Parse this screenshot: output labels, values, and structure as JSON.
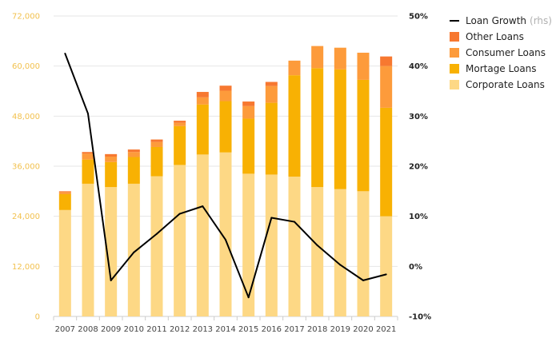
{
  "chart_data": {
    "type": "bar",
    "stacked": true,
    "categories": [
      "2007",
      "2008",
      "2009",
      "2010",
      "2011",
      "2012",
      "2013",
      "2014",
      "2015",
      "2016",
      "2017",
      "2018",
      "2019",
      "2020",
      "2021"
    ],
    "series": [
      {
        "name": "Corporate Loans",
        "color": "#fdd885",
        "values": [
          25500,
          31800,
          31000,
          31800,
          33600,
          36300,
          38800,
          39300,
          34200,
          34000,
          33500,
          31000,
          30500,
          30000,
          24000
        ]
      },
      {
        "name": "Mortage Loans",
        "color": "#f8b103",
        "values": [
          3800,
          5800,
          6000,
          6400,
          7000,
          9300,
          12000,
          12300,
          13200,
          17200,
          24300,
          28500,
          28700,
          26700,
          26000
        ]
      },
      {
        "name": "Consumer Loans",
        "color": "#fd9b3b",
        "values": [
          500,
          1400,
          1300,
          1200,
          1200,
          800,
          1700,
          2500,
          3000,
          4000,
          3500,
          5300,
          5200,
          6500,
          10000
        ]
      },
      {
        "name": "Other Loans",
        "color": "#f77830",
        "values": [
          200,
          400,
          600,
          600,
          600,
          500,
          1300,
          1200,
          1100,
          1000,
          0,
          0,
          0,
          0,
          2300
        ]
      }
    ],
    "line_series": {
      "name": "Loan Growth",
      "axis": "rhs",
      "color": "#000000",
      "values": [
        42.5,
        30.5,
        -2.8,
        2.8,
        6.5,
        10.5,
        12.0,
        5.3,
        -6.2,
        9.7,
        8.9,
        4.2,
        0.3,
        -2.8,
        -1.6
      ]
    },
    "ylim_left": [
      0,
      72000
    ],
    "yticks_left": [
      "0",
      "12,000",
      "24,000",
      "36,000",
      "48,000",
      "60,000",
      "72,000"
    ],
    "ylim_right": [
      -10,
      50
    ],
    "yticks_right": [
      "-10%",
      "0%",
      "10%",
      "20%",
      "30%",
      "40%",
      "50%"
    ],
    "grid": true,
    "legend_position": "top-right",
    "legend": [
      {
        "label": "Loan Growth",
        "suffix": "(rhs)",
        "kind": "line",
        "color": "#000000"
      },
      {
        "label": "Other Loans",
        "kind": "box",
        "color": "#f77830"
      },
      {
        "label": "Consumer Loans",
        "kind": "box",
        "color": "#fd9b3b"
      },
      {
        "label": "Mortage Loans",
        "kind": "box",
        "color": "#f8b103"
      },
      {
        "label": "Corporate Loans",
        "kind": "box",
        "color": "#fdd885"
      }
    ],
    "title": "",
    "xlabel": "",
    "ylabel": ""
  }
}
